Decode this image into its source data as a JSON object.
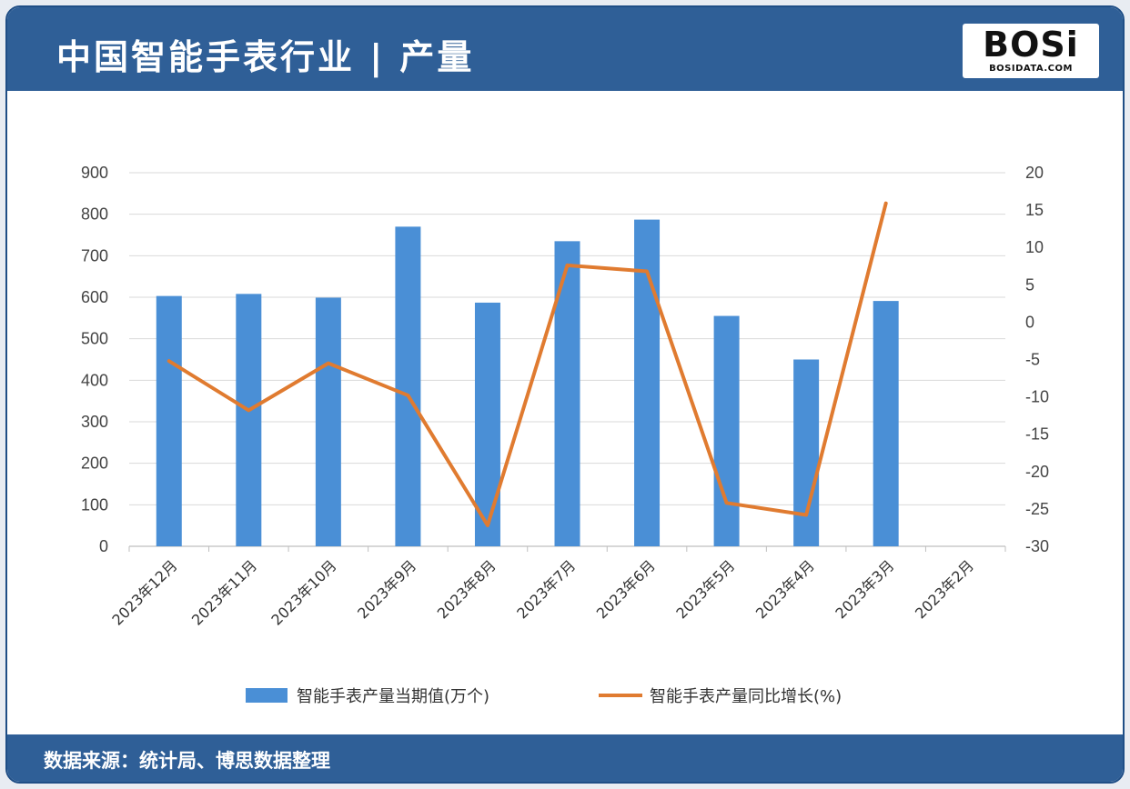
{
  "header": {
    "title": "中国智能手表行业 | 产量",
    "logo": "BOSi",
    "logo_sub": "BOSIDATA.COM"
  },
  "footer": {
    "source": "数据来源：统计局、博思数据整理"
  },
  "colors": {
    "header_bg": "#2f5f97",
    "bar": "#4a8fd6",
    "line": "#e07b30"
  },
  "chart_data": {
    "type": "bar",
    "categories": [
      "2023年12月",
      "2023年11月",
      "2023年10月",
      "2023年9月",
      "2023年8月",
      "2023年7月",
      "2023年6月",
      "2023年5月",
      "2023年4月",
      "2023年3月",
      "2023年2月"
    ],
    "series": [
      {
        "name": "智能手表产量当期值(万个)",
        "type": "bar",
        "axis": "left",
        "values": [
          603,
          608,
          599,
          770,
          587,
          735,
          787,
          555,
          450,
          591,
          null
        ]
      },
      {
        "name": "智能手表产量同比增长(%)",
        "type": "line",
        "axis": "right",
        "values": [
          -5.2,
          -11.8,
          -5.5,
          -9.8,
          -27.2,
          7.6,
          6.8,
          -24.2,
          -25.8,
          15.9,
          null
        ]
      }
    ],
    "left_axis": {
      "ylim": [
        0,
        900
      ],
      "ticks": [
        "0",
        "100",
        "200",
        "300",
        "400",
        "500",
        "600",
        "700",
        "800",
        "900"
      ]
    },
    "right_axis": {
      "ylim": [
        -30,
        20
      ],
      "ticks": [
        "-30",
        "-25",
        "-20",
        "-15",
        "-10",
        "-5",
        "0",
        "5",
        "10",
        "15",
        "20"
      ]
    },
    "grid": true,
    "legend_position": "bottom"
  }
}
